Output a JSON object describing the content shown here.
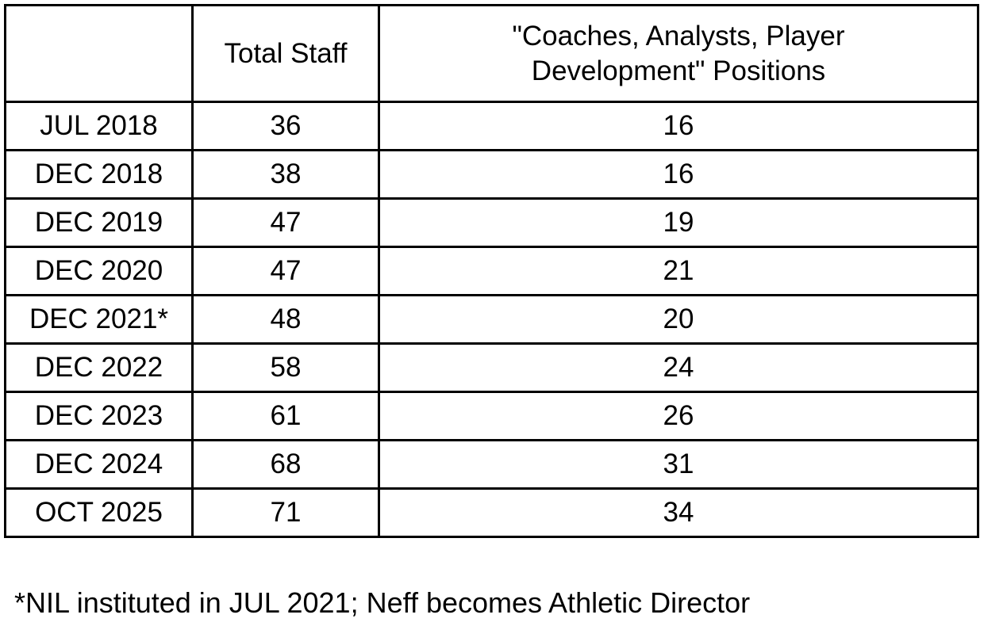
{
  "table": {
    "header": [
      "Total Staff",
      "\"Coaches, Analysts, Player Development\" Positions"
    ],
    "rows": [
      [
        "JUL 2018",
        "36",
        "16"
      ],
      [
        "DEC 2018",
        "38",
        "16"
      ],
      [
        "DEC 2019",
        "47",
        "19"
      ],
      [
        "DEC 2020",
        "47",
        "21"
      ],
      [
        "DEC 2021*",
        "48",
        "20"
      ],
      [
        "DEC 2022",
        "58",
        "24"
      ],
      [
        "DEC 2023",
        "61",
        "26"
      ],
      [
        "DEC 2024",
        "68",
        "31"
      ],
      [
        "OCT 2025",
        "71",
        "34"
      ]
    ]
  },
  "footnote": "*NIL instituted in JUL 2021; Neff becomes Athletic Director"
}
